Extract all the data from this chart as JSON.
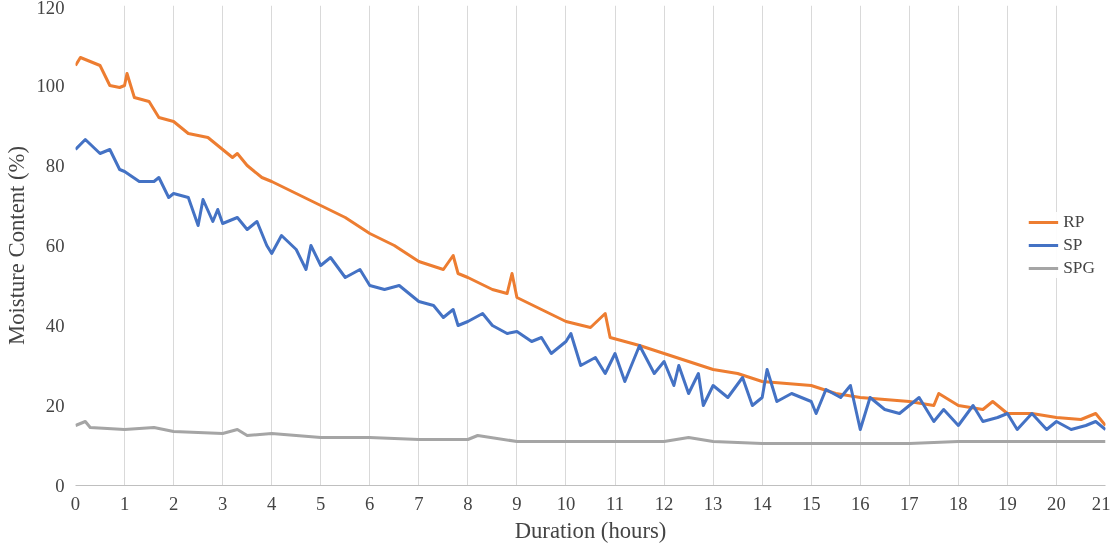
{
  "chart_data": {
    "type": "line",
    "xlabel": "Duration (hours)",
    "ylabel": "Moisture Content (%)",
    "xlim": [
      0,
      21
    ],
    "xticks": [
      0,
      1,
      2,
      3,
      4,
      5,
      6,
      7,
      8,
      9,
      10,
      11,
      12,
      13,
      14,
      15,
      16,
      17,
      18,
      19,
      20,
      21
    ],
    "ylim": [
      0,
      120
    ],
    "yticks": [
      0,
      20,
      40,
      60,
      80,
      100,
      120
    ],
    "grid": "x",
    "legend": "right",
    "marker": "none",
    "line_style": "solid",
    "series": [
      {
        "name": "RP",
        "color": "#ed7d31",
        "x": [
          0,
          0.1,
          0.3,
          0.5,
          0.7,
          0.9,
          1.0,
          1.05,
          1.2,
          1.5,
          1.7,
          2,
          2.3,
          2.7,
          3,
          3.2,
          3.3,
          3.5,
          3.8,
          4,
          4.5,
          5,
          5.5,
          6,
          6.5,
          7,
          7.5,
          7.7,
          7.8,
          8,
          8.5,
          8.8,
          8.9,
          9,
          9.5,
          10,
          10.5,
          10.8,
          10.9,
          11.5,
          12,
          12.5,
          13,
          13.5,
          14,
          14.5,
          15,
          15.5,
          16,
          16.5,
          17,
          17.5,
          17.6,
          18,
          18.5,
          18.7,
          19,
          19.5,
          20,
          20.5,
          20.8,
          21
        ],
        "values": [
          105,
          107,
          106,
          105,
          100,
          99.5,
          100,
          103,
          97,
          96,
          92,
          91,
          88,
          87,
          84,
          82,
          83,
          80,
          77,
          76,
          73,
          70,
          67,
          63,
          60,
          56,
          54,
          57.5,
          53,
          52,
          49,
          48,
          53,
          47,
          44,
          41,
          39.5,
          43,
          37,
          35,
          33,
          31,
          29,
          28,
          26,
          25.5,
          25,
          23,
          22,
          21.5,
          21,
          20,
          23,
          20,
          19,
          21,
          18,
          18,
          17,
          16.5,
          18,
          15
        ]
      },
      {
        "name": "SP",
        "color": "#4472c4",
        "x": [
          0,
          0.2,
          0.5,
          0.7,
          0.9,
          1,
          1.3,
          1.6,
          1.7,
          1.9,
          2,
          2.3,
          2.5,
          2.6,
          2.8,
          2.9,
          3,
          3.3,
          3.5,
          3.7,
          3.9,
          4,
          4.2,
          4.5,
          4.7,
          4.8,
          5,
          5.2,
          5.5,
          5.8,
          6,
          6.3,
          6.6,
          7,
          7.3,
          7.5,
          7.7,
          7.8,
          8,
          8.3,
          8.5,
          8.8,
          9,
          9.3,
          9.5,
          9.7,
          10,
          10.1,
          10.3,
          10.6,
          10.8,
          11,
          11.2,
          11.5,
          11.8,
          12,
          12.2,
          12.3,
          12.5,
          12.7,
          12.8,
          13,
          13.3,
          13.6,
          13.8,
          14,
          14.1,
          14.3,
          14.6,
          15,
          15.1,
          15.3,
          15.6,
          15.8,
          16,
          16.2,
          16.5,
          16.8,
          17,
          17.2,
          17.5,
          17.7,
          18,
          18.3,
          18.5,
          18.8,
          19,
          19.2,
          19.5,
          19.8,
          20,
          20.3,
          20.6,
          20.8,
          21
        ],
        "values": [
          84,
          86.5,
          83,
          84,
          79,
          78.5,
          76,
          76,
          77,
          72,
          73,
          72,
          65,
          71.5,
          66,
          69,
          65.5,
          67,
          64,
          66,
          60,
          58,
          62.5,
          59,
          54,
          60,
          55,
          57,
          52,
          54,
          50,
          49,
          50,
          46,
          45,
          42,
          44,
          40,
          41,
          43,
          40,
          38,
          38.5,
          36,
          37,
          33,
          36,
          38,
          30,
          32,
          28,
          33,
          26,
          35,
          28,
          31,
          25,
          30,
          23,
          28,
          20,
          25,
          22,
          27,
          20,
          22,
          29,
          21,
          23,
          21,
          18,
          24,
          22,
          25,
          14,
          22,
          19,
          18,
          20,
          22,
          16,
          19,
          15,
          20,
          16,
          17,
          18,
          14,
          18,
          14,
          16,
          14,
          15,
          16,
          14
        ]
      },
      {
        "name": "SPG",
        "color": "#a5a5a5",
        "x": [
          0,
          0.2,
          0.3,
          1,
          1.6,
          2,
          3,
          3.3,
          3.5,
          4,
          5,
          6,
          7,
          8,
          8.2,
          9,
          10,
          11,
          12,
          12.5,
          13,
          14,
          15,
          16,
          17,
          18,
          19,
          20,
          21
        ],
        "values": [
          15,
          16,
          14.5,
          14,
          14.5,
          13.5,
          13,
          14,
          12.5,
          13,
          12,
          12,
          11.5,
          11.5,
          12.5,
          11,
          11,
          11,
          11,
          12,
          11,
          10.5,
          10.5,
          10.5,
          10.5,
          11,
          11,
          11,
          11
        ]
      }
    ]
  }
}
